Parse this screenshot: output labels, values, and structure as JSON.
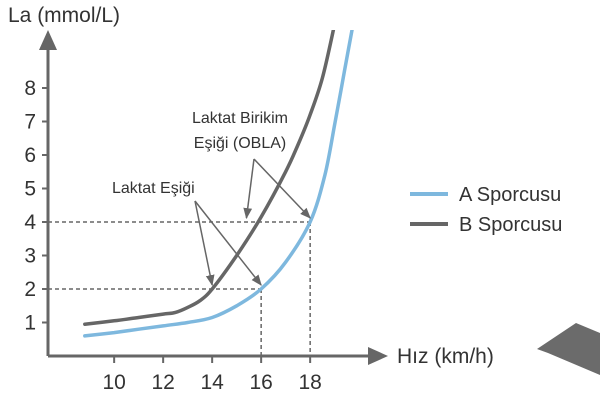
{
  "chart_data": {
    "type": "line",
    "xlabel": "Hız (km/h)",
    "ylabel": "La (mmol/L)",
    "x_ticks": [
      10,
      12,
      14,
      16,
      18
    ],
    "y_ticks": [
      1,
      2,
      3,
      4,
      5,
      6,
      7,
      8
    ],
    "xlim": [
      7.3,
      20.5
    ],
    "ylim": [
      0,
      9.5
    ],
    "grid": false,
    "legend_position": "right",
    "series": [
      {
        "name": "A Sporcusu",
        "color": "#7EB8DE",
        "x": [
          8.8,
          10,
          11,
          12,
          13,
          14,
          15,
          16,
          17,
          18,
          18.6,
          19,
          19.4,
          19.8
        ],
        "y": [
          0.6,
          0.7,
          0.8,
          0.9,
          1.0,
          1.15,
          1.5,
          2.0,
          2.8,
          4.0,
          5.4,
          6.9,
          8.5,
          10.1
        ]
      },
      {
        "name": "B Sporcusu",
        "color": "#666666",
        "x": [
          8.8,
          10,
          11,
          12,
          12.5,
          13,
          13.5,
          14,
          15,
          16,
          17,
          17.5,
          18,
          18.5,
          19
        ],
        "y": [
          0.95,
          1.05,
          1.15,
          1.25,
          1.3,
          1.45,
          1.65,
          2.0,
          3.0,
          4.15,
          5.5,
          6.3,
          7.2,
          8.3,
          9.9
        ]
      }
    ],
    "reference_lines": [
      {
        "x": 16,
        "y": 2
      },
      {
        "x": 18,
        "y": 4
      }
    ],
    "annotations": [
      {
        "label": "Laktat Eşiği",
        "points": [
          {
            "x": 14,
            "y": 2
          },
          {
            "x": 16,
            "y": 2
          }
        ]
      },
      {
        "label_lines": [
          "Laktat Birikim",
          "Eşiği (OBLA)"
        ],
        "points": [
          {
            "x": 15.4,
            "y": 4
          },
          {
            "x": 18,
            "y": 4
          }
        ]
      }
    ]
  }
}
